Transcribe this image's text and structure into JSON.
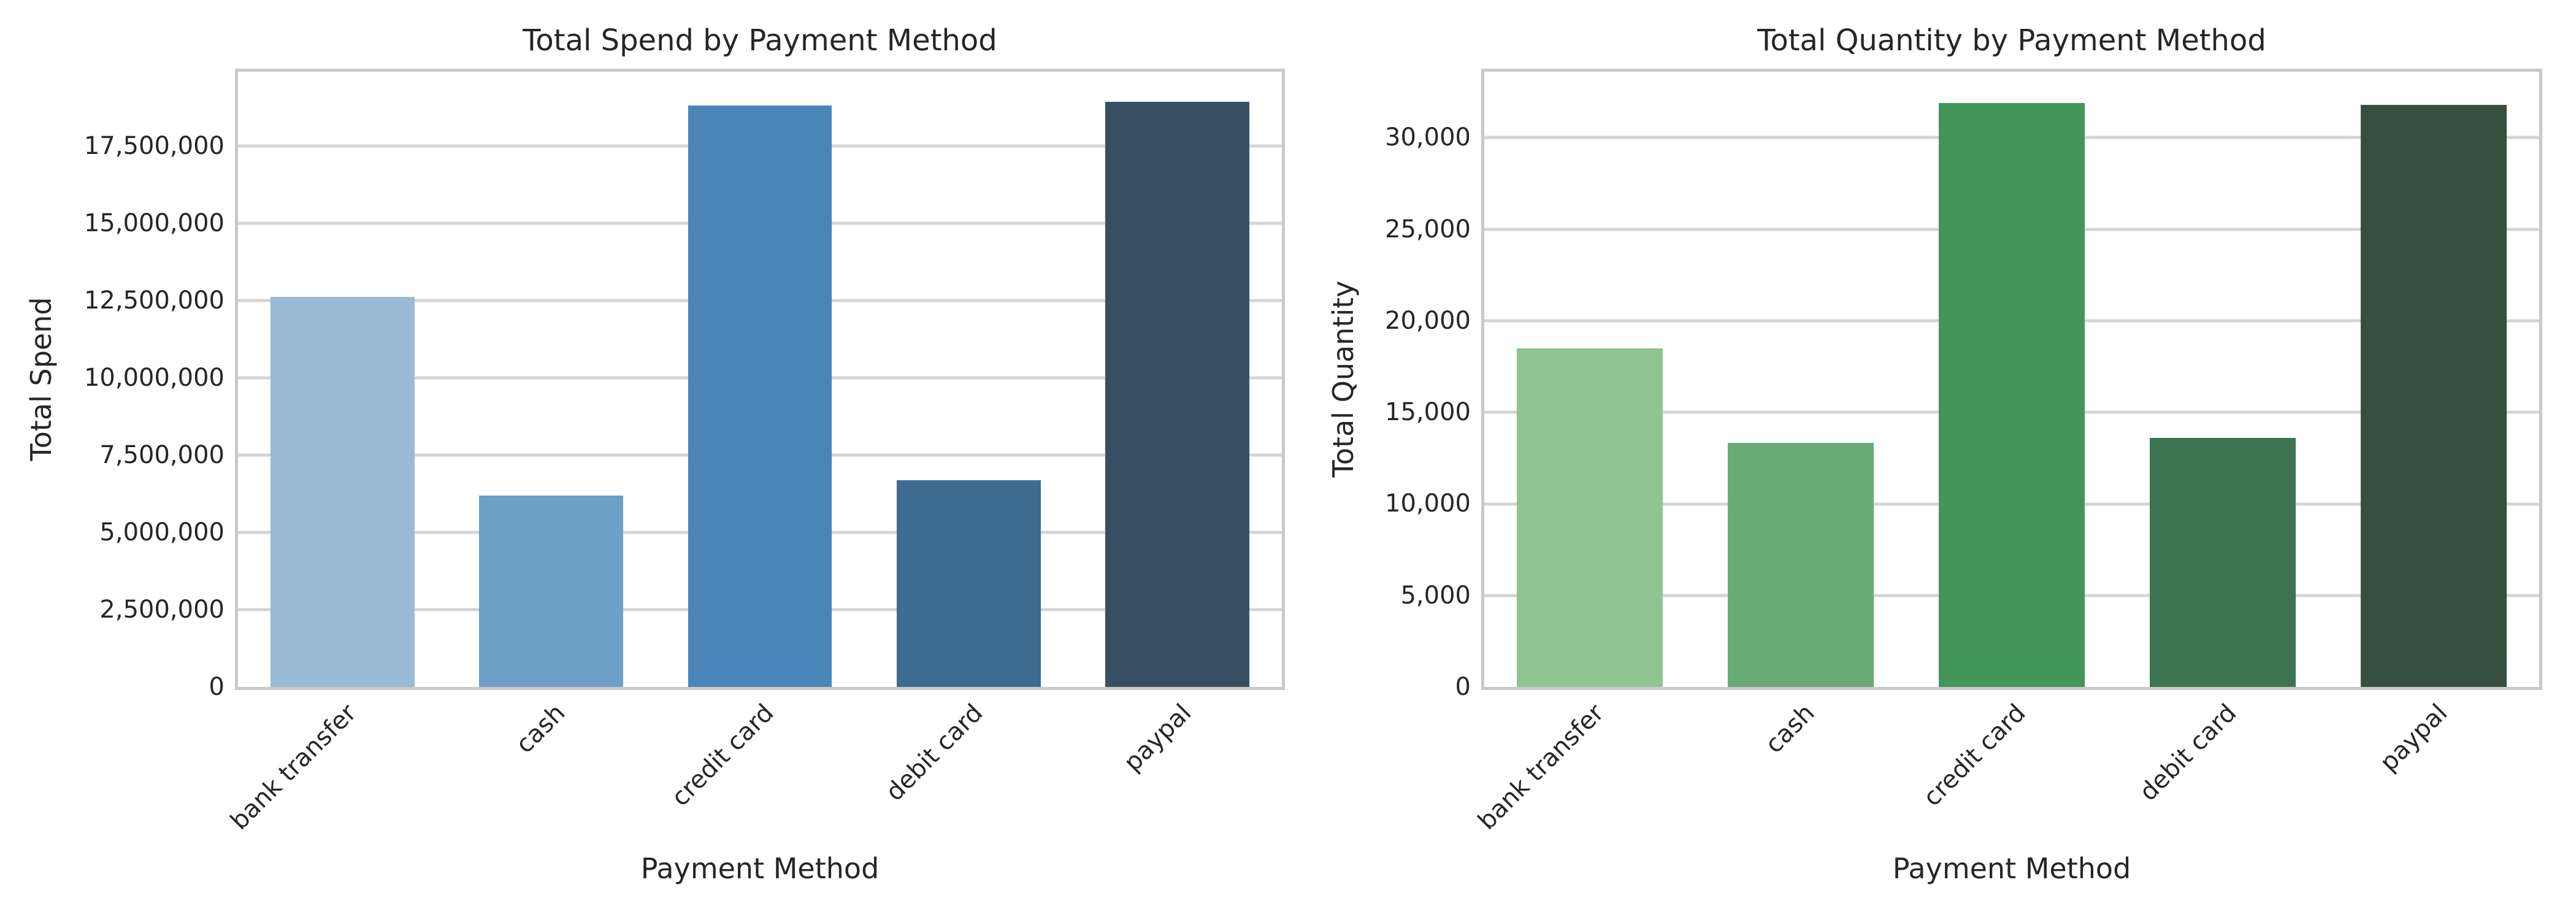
{
  "chart_data": [
    {
      "type": "bar",
      "title": "Total Spend by Payment Method",
      "xlabel": "Payment Method",
      "ylabel": "Total Spend",
      "categories": [
        "bank transfer",
        "cash",
        "credit card",
        "debit card",
        "paypal"
      ],
      "values": [
        12620000,
        6200000,
        18800000,
        6690000,
        18920000
      ],
      "yticks": [
        0,
        2500000,
        5000000,
        7500000,
        10000000,
        12500000,
        15000000,
        17500000
      ],
      "ytick_labels": [
        "0",
        "2,500,000",
        "5,000,000",
        "7,500,000",
        "10,000,000",
        "12,500,000",
        "15,000,000",
        "17,500,000"
      ],
      "ylim": [
        0,
        19900000
      ],
      "bar_colors": [
        "#9bbad5",
        "#6da0c6",
        "#4a85ba",
        "#3e6c90",
        "#374f62"
      ],
      "grid": true,
      "legend": null
    },
    {
      "type": "bar",
      "title": "Total Quantity by Payment Method",
      "xlabel": "Payment Method",
      "ylabel": "Total Quantity",
      "categories": [
        "bank transfer",
        "cash",
        "credit card",
        "debit card",
        "paypal"
      ],
      "values": [
        18500,
        13350,
        31900,
        13600,
        31800
      ],
      "yticks": [
        0,
        5000,
        10000,
        15000,
        20000,
        25000,
        30000
      ],
      "ytick_labels": [
        "0",
        "5,000",
        "10,000",
        "15,000",
        "20,000",
        "25,000",
        "30,000"
      ],
      "ylim": [
        0,
        33600
      ],
      "bar_colors": [
        "#90c492",
        "#69ab77",
        "#449559",
        "#3d7450",
        "#365040"
      ],
      "grid": true,
      "legend": null
    }
  ],
  "styles": {
    "background": "#ffffff",
    "grid_color": "#d4d4d4",
    "spine_color": "#c9c9c9",
    "text_color": "#262626"
  }
}
